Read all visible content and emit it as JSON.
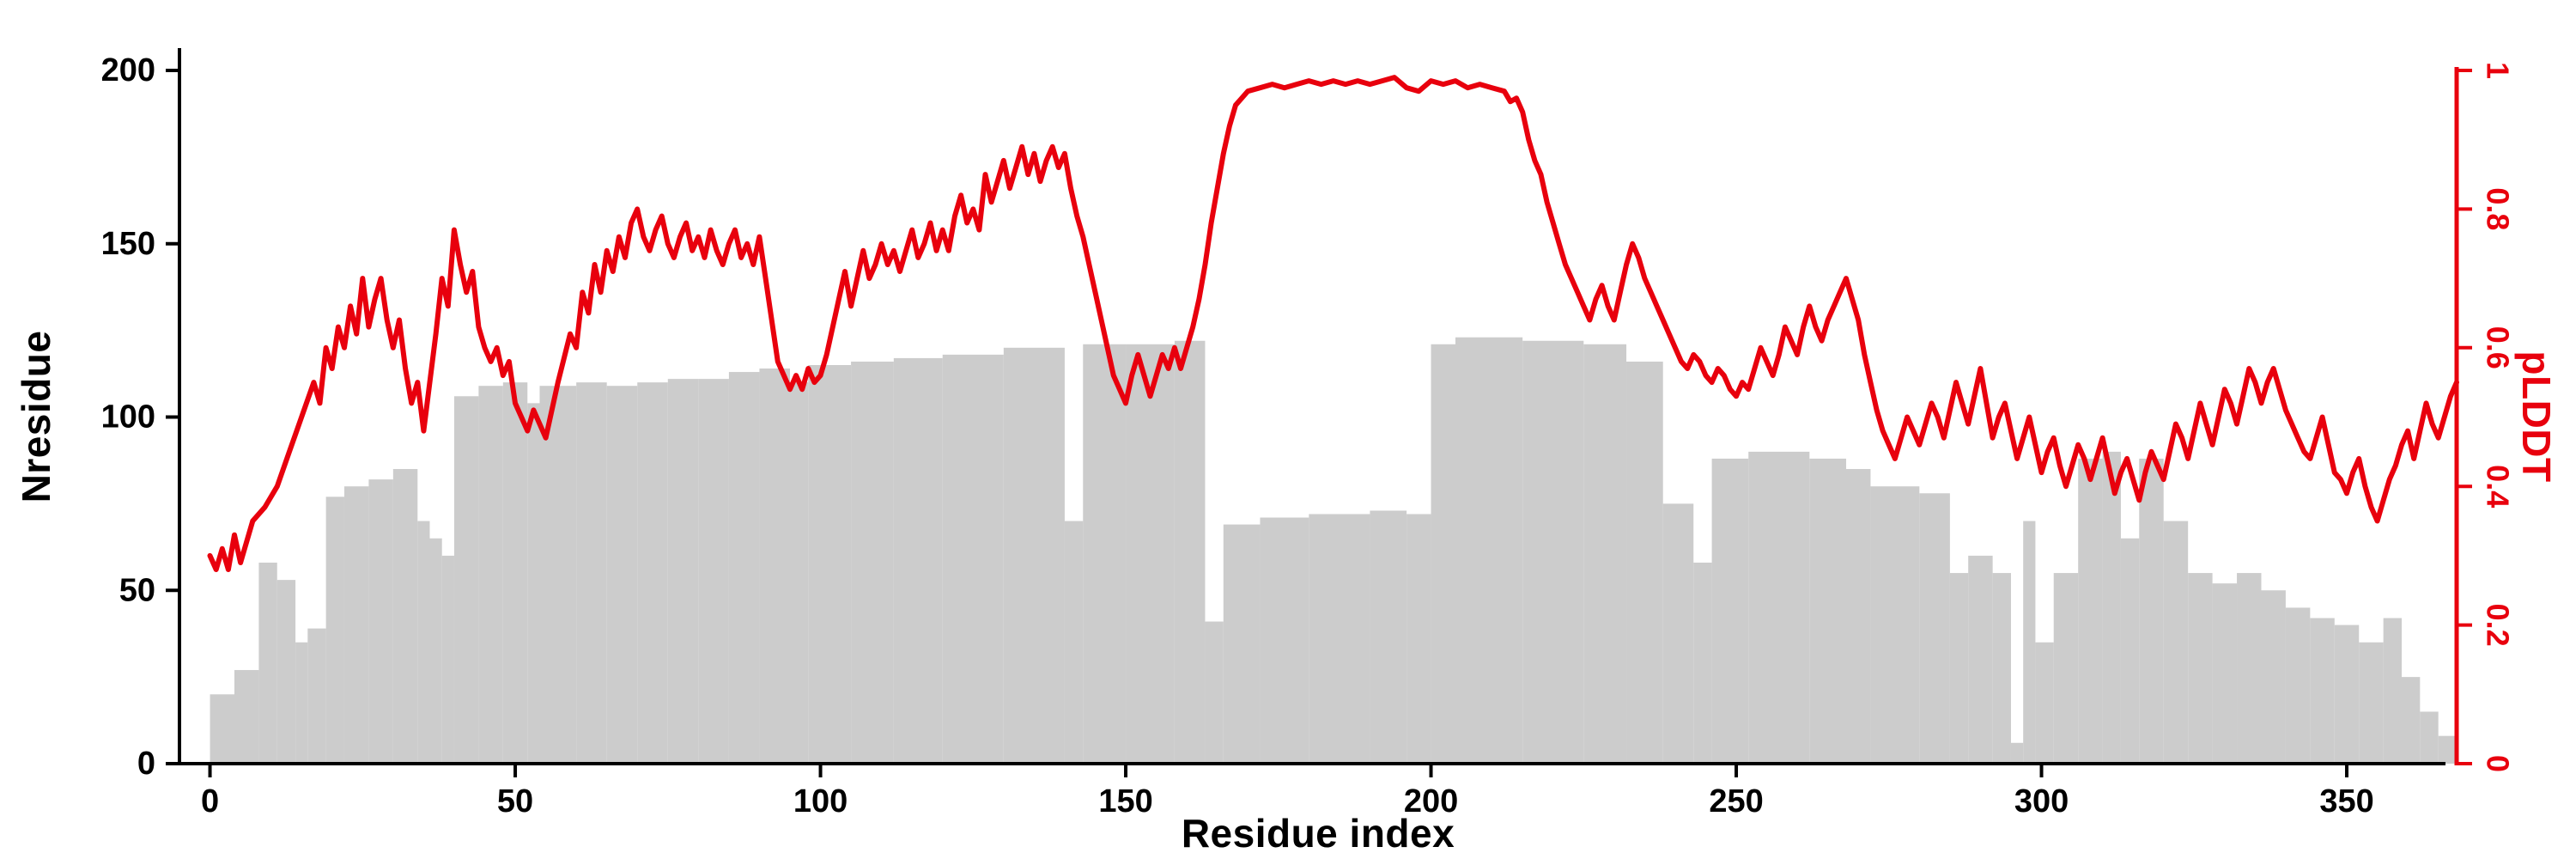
{
  "chart_data": {
    "type": "bar+line",
    "title": "",
    "xlabel": "Residue index",
    "ylabel_left": "Nresidue",
    "ylabel_right": "pLDDT",
    "x_range": [
      -5,
      368
    ],
    "x_ticks": [
      0,
      50,
      100,
      150,
      200,
      250,
      300,
      350
    ],
    "y_left_range": [
      0,
      200
    ],
    "y_left_ticks": [
      0,
      50,
      100,
      150,
      200
    ],
    "y_right_range": [
      0,
      1
    ],
    "y_right_ticks": [
      0,
      0.2,
      0.4,
      0.6,
      0.8,
      1
    ],
    "grid": false,
    "legend": "none",
    "colors": {
      "bar": "#cccccc",
      "line": "#e8000d",
      "axis": "#000000"
    },
    "bars": [
      [
        0,
        4,
        20
      ],
      [
        4,
        8,
        27
      ],
      [
        8,
        11,
        58
      ],
      [
        11,
        14,
        53
      ],
      [
        14,
        16,
        35
      ],
      [
        16,
        19,
        39
      ],
      [
        19,
        22,
        77
      ],
      [
        22,
        26,
        80
      ],
      [
        26,
        30,
        82
      ],
      [
        30,
        34,
        85
      ],
      [
        34,
        36,
        70
      ],
      [
        36,
        38,
        65
      ],
      [
        38,
        40,
        60
      ],
      [
        40,
        44,
        106
      ],
      [
        44,
        48,
        109
      ],
      [
        48,
        52,
        110
      ],
      [
        52,
        54,
        104
      ],
      [
        54,
        60,
        109
      ],
      [
        60,
        65,
        110
      ],
      [
        65,
        70,
        109
      ],
      [
        70,
        75,
        110
      ],
      [
        75,
        80,
        111
      ],
      [
        80,
        85,
        111
      ],
      [
        85,
        90,
        113
      ],
      [
        90,
        95,
        114
      ],
      [
        95,
        98,
        110
      ],
      [
        98,
        105,
        115
      ],
      [
        105,
        112,
        116
      ],
      [
        112,
        120,
        117
      ],
      [
        120,
        130,
        118
      ],
      [
        130,
        140,
        120
      ],
      [
        140,
        143,
        70
      ],
      [
        143,
        150,
        121
      ],
      [
        150,
        158,
        121
      ],
      [
        158,
        163,
        122
      ],
      [
        163,
        166,
        41
      ],
      [
        166,
        172,
        69
      ],
      [
        172,
        180,
        71
      ],
      [
        180,
        190,
        72
      ],
      [
        190,
        196,
        73
      ],
      [
        196,
        200,
        72
      ],
      [
        200,
        204,
        121
      ],
      [
        204,
        215,
        123
      ],
      [
        215,
        225,
        122
      ],
      [
        225,
        232,
        121
      ],
      [
        232,
        238,
        116
      ],
      [
        238,
        243,
        75
      ],
      [
        243,
        246,
        58
      ],
      [
        246,
        252,
        88
      ],
      [
        252,
        262,
        90
      ],
      [
        262,
        268,
        88
      ],
      [
        268,
        272,
        85
      ],
      [
        272,
        280,
        80
      ],
      [
        280,
        285,
        78
      ],
      [
        285,
        288,
        55
      ],
      [
        288,
        292,
        60
      ],
      [
        292,
        295,
        55
      ],
      [
        295,
        297,
        6
      ],
      [
        297,
        299,
        70
      ],
      [
        299,
        302,
        35
      ],
      [
        302,
        306,
        55
      ],
      [
        306,
        310,
        88
      ],
      [
        310,
        313,
        90
      ],
      [
        313,
        316,
        65
      ],
      [
        316,
        320,
        88
      ],
      [
        320,
        324,
        70
      ],
      [
        324,
        328,
        55
      ],
      [
        328,
        332,
        52
      ],
      [
        332,
        336,
        55
      ],
      [
        336,
        340,
        50
      ],
      [
        340,
        344,
        45
      ],
      [
        344,
        348,
        42
      ],
      [
        348,
        352,
        40
      ],
      [
        352,
        356,
        35
      ],
      [
        356,
        359,
        42
      ],
      [
        359,
        362,
        25
      ],
      [
        362,
        365,
        15
      ],
      [
        365,
        368,
        8
      ]
    ],
    "plddt": [
      [
        0,
        0.3
      ],
      [
        1,
        0.28
      ],
      [
        2,
        0.31
      ],
      [
        3,
        0.28
      ],
      [
        4,
        0.33
      ],
      [
        5,
        0.29
      ],
      [
        7,
        0.35
      ],
      [
        9,
        0.37
      ],
      [
        11,
        0.4
      ],
      [
        13,
        0.45
      ],
      [
        15,
        0.5
      ],
      [
        17,
        0.55
      ],
      [
        18,
        0.52
      ],
      [
        19,
        0.6
      ],
      [
        20,
        0.57
      ],
      [
        21,
        0.63
      ],
      [
        22,
        0.6
      ],
      [
        23,
        0.66
      ],
      [
        24,
        0.62
      ],
      [
        25,
        0.7
      ],
      [
        26,
        0.63
      ],
      [
        27,
        0.67
      ],
      [
        28,
        0.7
      ],
      [
        29,
        0.64
      ],
      [
        30,
        0.6
      ],
      [
        31,
        0.64
      ],
      [
        32,
        0.57
      ],
      [
        33,
        0.52
      ],
      [
        34,
        0.55
      ],
      [
        35,
        0.48
      ],
      [
        36,
        0.55
      ],
      [
        37,
        0.62
      ],
      [
        38,
        0.7
      ],
      [
        39,
        0.66
      ],
      [
        40,
        0.77
      ],
      [
        41,
        0.72
      ],
      [
        42,
        0.68
      ],
      [
        43,
        0.71
      ],
      [
        44,
        0.63
      ],
      [
        45,
        0.6
      ],
      [
        46,
        0.58
      ],
      [
        47,
        0.6
      ],
      [
        48,
        0.56
      ],
      [
        49,
        0.58
      ],
      [
        50,
        0.52
      ],
      [
        51,
        0.5
      ],
      [
        52,
        0.48
      ],
      [
        53,
        0.51
      ],
      [
        54,
        0.49
      ],
      [
        55,
        0.47
      ],
      [
        57,
        0.55
      ],
      [
        59,
        0.62
      ],
      [
        60,
        0.6
      ],
      [
        61,
        0.68
      ],
      [
        62,
        0.65
      ],
      [
        63,
        0.72
      ],
      [
        64,
        0.68
      ],
      [
        65,
        0.74
      ],
      [
        66,
        0.71
      ],
      [
        67,
        0.76
      ],
      [
        68,
        0.73
      ],
      [
        69,
        0.78
      ],
      [
        70,
        0.8
      ],
      [
        71,
        0.76
      ],
      [
        72,
        0.74
      ],
      [
        73,
        0.77
      ],
      [
        74,
        0.79
      ],
      [
        75,
        0.75
      ],
      [
        76,
        0.73
      ],
      [
        77,
        0.76
      ],
      [
        78,
        0.78
      ],
      [
        79,
        0.74
      ],
      [
        80,
        0.76
      ],
      [
        81,
        0.73
      ],
      [
        82,
        0.77
      ],
      [
        83,
        0.74
      ],
      [
        84,
        0.72
      ],
      [
        85,
        0.75
      ],
      [
        86,
        0.77
      ],
      [
        87,
        0.73
      ],
      [
        88,
        0.75
      ],
      [
        89,
        0.72
      ],
      [
        90,
        0.76
      ],
      [
        91,
        0.7
      ],
      [
        92,
        0.64
      ],
      [
        93,
        0.58
      ],
      [
        94,
        0.56
      ],
      [
        95,
        0.54
      ],
      [
        96,
        0.56
      ],
      [
        97,
        0.54
      ],
      [
        98,
        0.57
      ],
      [
        99,
        0.55
      ],
      [
        100,
        0.56
      ],
      [
        101,
        0.59
      ],
      [
        102,
        0.63
      ],
      [
        103,
        0.67
      ],
      [
        104,
        0.71
      ],
      [
        105,
        0.66
      ],
      [
        106,
        0.7
      ],
      [
        107,
        0.74
      ],
      [
        108,
        0.7
      ],
      [
        109,
        0.72
      ],
      [
        110,
        0.75
      ],
      [
        111,
        0.72
      ],
      [
        112,
        0.74
      ],
      [
        113,
        0.71
      ],
      [
        114,
        0.74
      ],
      [
        115,
        0.77
      ],
      [
        116,
        0.73
      ],
      [
        117,
        0.75
      ],
      [
        118,
        0.78
      ],
      [
        119,
        0.74
      ],
      [
        120,
        0.77
      ],
      [
        121,
        0.74
      ],
      [
        122,
        0.79
      ],
      [
        123,
        0.82
      ],
      [
        124,
        0.78
      ],
      [
        125,
        0.8
      ],
      [
        126,
        0.77
      ],
      [
        127,
        0.85
      ],
      [
        128,
        0.81
      ],
      [
        129,
        0.84
      ],
      [
        130,
        0.87
      ],
      [
        131,
        0.83
      ],
      [
        132,
        0.86
      ],
      [
        133,
        0.89
      ],
      [
        134,
        0.85
      ],
      [
        135,
        0.88
      ],
      [
        136,
        0.84
      ],
      [
        137,
        0.87
      ],
      [
        138,
        0.89
      ],
      [
        139,
        0.86
      ],
      [
        140,
        0.88
      ],
      [
        141,
        0.83
      ],
      [
        142,
        0.79
      ],
      [
        143,
        0.76
      ],
      [
        144,
        0.72
      ],
      [
        145,
        0.68
      ],
      [
        146,
        0.64
      ],
      [
        147,
        0.6
      ],
      [
        148,
        0.56
      ],
      [
        149,
        0.54
      ],
      [
        150,
        0.52
      ],
      [
        151,
        0.56
      ],
      [
        152,
        0.59
      ],
      [
        153,
        0.56
      ],
      [
        154,
        0.53
      ],
      [
        155,
        0.56
      ],
      [
        156,
        0.59
      ],
      [
        157,
        0.57
      ],
      [
        158,
        0.6
      ],
      [
        159,
        0.57
      ],
      [
        160,
        0.6
      ],
      [
        161,
        0.63
      ],
      [
        162,
        0.67
      ],
      [
        163,
        0.72
      ],
      [
        164,
        0.78
      ],
      [
        165,
        0.83
      ],
      [
        166,
        0.88
      ],
      [
        167,
        0.92
      ],
      [
        168,
        0.95
      ],
      [
        169,
        0.96
      ],
      [
        170,
        0.97
      ],
      [
        172,
        0.975
      ],
      [
        174,
        0.98
      ],
      [
        176,
        0.975
      ],
      [
        178,
        0.98
      ],
      [
        180,
        0.985
      ],
      [
        182,
        0.98
      ],
      [
        184,
        0.985
      ],
      [
        186,
        0.98
      ],
      [
        188,
        0.985
      ],
      [
        190,
        0.98
      ],
      [
        192,
        0.985
      ],
      [
        194,
        0.99
      ],
      [
        196,
        0.975
      ],
      [
        198,
        0.97
      ],
      [
        200,
        0.985
      ],
      [
        202,
        0.98
      ],
      [
        204,
        0.985
      ],
      [
        206,
        0.975
      ],
      [
        208,
        0.98
      ],
      [
        210,
        0.975
      ],
      [
        212,
        0.97
      ],
      [
        213,
        0.955
      ],
      [
        214,
        0.96
      ],
      [
        215,
        0.94
      ],
      [
        216,
        0.9
      ],
      [
        217,
        0.87
      ],
      [
        218,
        0.85
      ],
      [
        219,
        0.81
      ],
      [
        220,
        0.78
      ],
      [
        221,
        0.75
      ],
      [
        222,
        0.72
      ],
      [
        223,
        0.7
      ],
      [
        224,
        0.68
      ],
      [
        225,
        0.66
      ],
      [
        226,
        0.64
      ],
      [
        227,
        0.67
      ],
      [
        228,
        0.69
      ],
      [
        229,
        0.66
      ],
      [
        230,
        0.64
      ],
      [
        231,
        0.68
      ],
      [
        232,
        0.72
      ],
      [
        233,
        0.75
      ],
      [
        234,
        0.73
      ],
      [
        235,
        0.7
      ],
      [
        236,
        0.68
      ],
      [
        237,
        0.66
      ],
      [
        238,
        0.64
      ],
      [
        239,
        0.62
      ],
      [
        240,
        0.6
      ],
      [
        241,
        0.58
      ],
      [
        242,
        0.57
      ],
      [
        243,
        0.59
      ],
      [
        244,
        0.58
      ],
      [
        245,
        0.56
      ],
      [
        246,
        0.55
      ],
      [
        247,
        0.57
      ],
      [
        248,
        0.56
      ],
      [
        249,
        0.54
      ],
      [
        250,
        0.53
      ],
      [
        251,
        0.55
      ],
      [
        252,
        0.54
      ],
      [
        253,
        0.57
      ],
      [
        254,
        0.6
      ],
      [
        255,
        0.58
      ],
      [
        256,
        0.56
      ],
      [
        257,
        0.59
      ],
      [
        258,
        0.63
      ],
      [
        259,
        0.61
      ],
      [
        260,
        0.59
      ],
      [
        261,
        0.63
      ],
      [
        262,
        0.66
      ],
      [
        263,
        0.63
      ],
      [
        264,
        0.61
      ],
      [
        265,
        0.64
      ],
      [
        266,
        0.66
      ],
      [
        267,
        0.68
      ],
      [
        268,
        0.7
      ],
      [
        269,
        0.67
      ],
      [
        270,
        0.64
      ],
      [
        271,
        0.59
      ],
      [
        272,
        0.55
      ],
      [
        273,
        0.51
      ],
      [
        274,
        0.48
      ],
      [
        275,
        0.46
      ],
      [
        276,
        0.44
      ],
      [
        277,
        0.47
      ],
      [
        278,
        0.5
      ],
      [
        279,
        0.48
      ],
      [
        280,
        0.46
      ],
      [
        281,
        0.49
      ],
      [
        282,
        0.52
      ],
      [
        283,
        0.5
      ],
      [
        284,
        0.47
      ],
      [
        285,
        0.51
      ],
      [
        286,
        0.55
      ],
      [
        287,
        0.52
      ],
      [
        288,
        0.49
      ],
      [
        289,
        0.53
      ],
      [
        290,
        0.57
      ],
      [
        291,
        0.52
      ],
      [
        292,
        0.47
      ],
      [
        293,
        0.5
      ],
      [
        294,
        0.52
      ],
      [
        295,
        0.48
      ],
      [
        296,
        0.44
      ],
      [
        297,
        0.47
      ],
      [
        298,
        0.5
      ],
      [
        299,
        0.46
      ],
      [
        300,
        0.42
      ],
      [
        301,
        0.45
      ],
      [
        302,
        0.47
      ],
      [
        303,
        0.43
      ],
      [
        304,
        0.4
      ],
      [
        305,
        0.43
      ],
      [
        306,
        0.46
      ],
      [
        307,
        0.44
      ],
      [
        308,
        0.41
      ],
      [
        309,
        0.44
      ],
      [
        310,
        0.47
      ],
      [
        311,
        0.43
      ],
      [
        312,
        0.39
      ],
      [
        313,
        0.42
      ],
      [
        314,
        0.44
      ],
      [
        315,
        0.41
      ],
      [
        316,
        0.38
      ],
      [
        317,
        0.42
      ],
      [
        318,
        0.45
      ],
      [
        319,
        0.43
      ],
      [
        320,
        0.41
      ],
      [
        321,
        0.45
      ],
      [
        322,
        0.49
      ],
      [
        323,
        0.47
      ],
      [
        324,
        0.44
      ],
      [
        325,
        0.48
      ],
      [
        326,
        0.52
      ],
      [
        327,
        0.49
      ],
      [
        328,
        0.46
      ],
      [
        329,
        0.5
      ],
      [
        330,
        0.54
      ],
      [
        331,
        0.52
      ],
      [
        332,
        0.49
      ],
      [
        333,
        0.53
      ],
      [
        334,
        0.57
      ],
      [
        335,
        0.55
      ],
      [
        336,
        0.52
      ],
      [
        337,
        0.55
      ],
      [
        338,
        0.57
      ],
      [
        339,
        0.54
      ],
      [
        340,
        0.51
      ],
      [
        341,
        0.49
      ],
      [
        342,
        0.47
      ],
      [
        343,
        0.45
      ],
      [
        344,
        0.44
      ],
      [
        345,
        0.47
      ],
      [
        346,
        0.5
      ],
      [
        347,
        0.46
      ],
      [
        348,
        0.42
      ],
      [
        349,
        0.41
      ],
      [
        350,
        0.39
      ],
      [
        351,
        0.42
      ],
      [
        352,
        0.44
      ],
      [
        353,
        0.4
      ],
      [
        354,
        0.37
      ],
      [
        355,
        0.35
      ],
      [
        356,
        0.38
      ],
      [
        357,
        0.41
      ],
      [
        358,
        0.43
      ],
      [
        359,
        0.46
      ],
      [
        360,
        0.48
      ],
      [
        361,
        0.44
      ],
      [
        362,
        0.48
      ],
      [
        363,
        0.52
      ],
      [
        364,
        0.49
      ],
      [
        365,
        0.47
      ],
      [
        366,
        0.5
      ],
      [
        367,
        0.53
      ],
      [
        368,
        0.55
      ]
    ]
  }
}
